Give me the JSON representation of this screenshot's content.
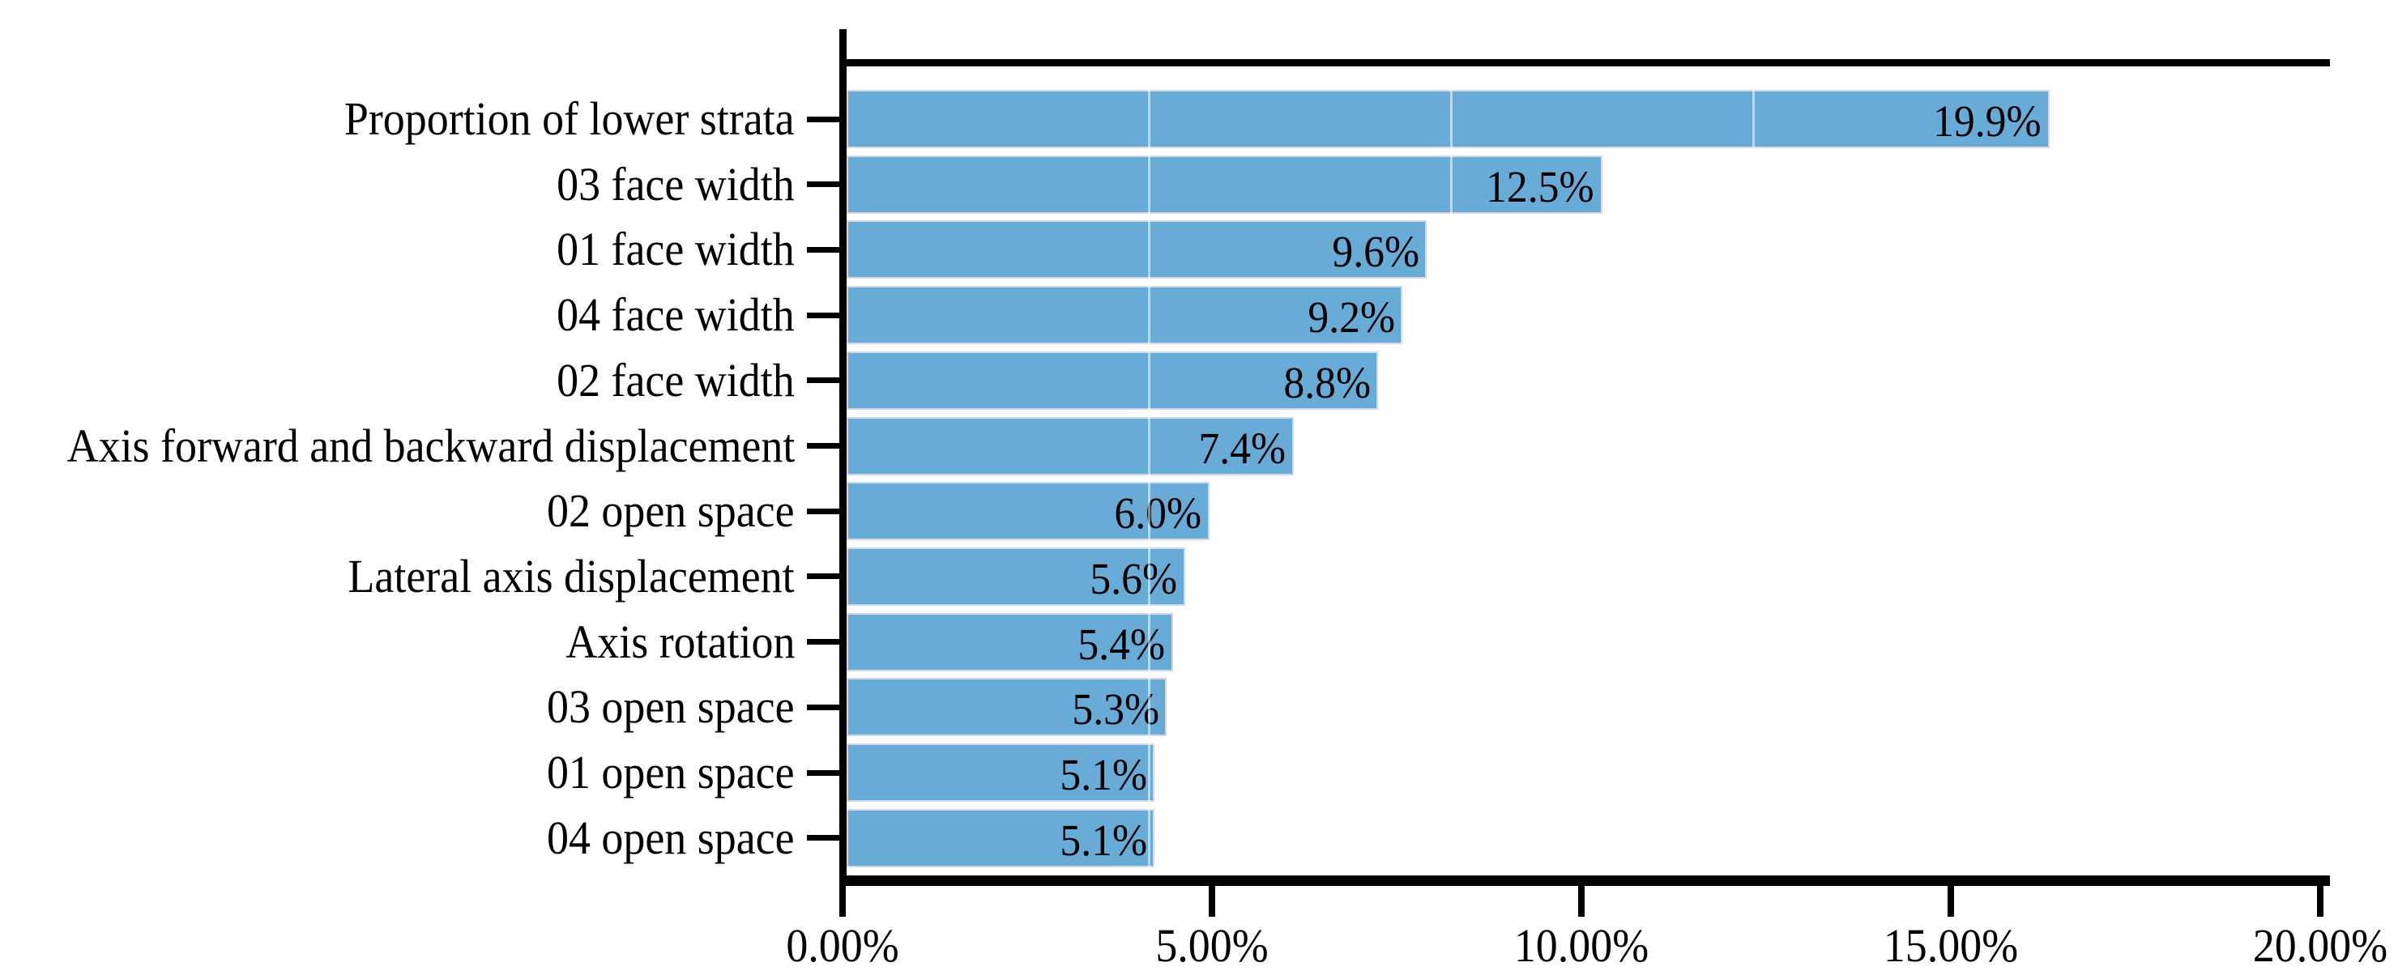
{
  "chart_data": {
    "type": "bar",
    "orientation": "horizontal",
    "categories": [
      "Proportion of lower strata",
      "03 face width",
      "01 face width",
      "04 face width",
      "02 face width",
      "Axis forward and backward displacement",
      "02 open space",
      "Lateral axis displacement",
      "Axis rotation",
      "03 open space",
      "01 open space",
      "04 open space"
    ],
    "values": [
      19.9,
      12.5,
      9.6,
      9.2,
      8.8,
      7.4,
      6.0,
      5.6,
      5.4,
      5.3,
      5.1,
      5.1
    ],
    "value_labels": [
      "19.9%",
      "12.5%",
      "9.6%",
      "9.2%",
      "8.8%",
      "7.4%",
      "6.0%",
      "5.6%",
      "5.4%",
      "5.3%",
      "5.1%",
      "5.1%"
    ],
    "x_axis": {
      "range": [
        0,
        20
      ],
      "tick_values": [
        0,
        5,
        10,
        15,
        20
      ],
      "tick_labels": [
        "0.00%",
        "5.00%",
        "10.00%",
        "15.00%",
        "20.00%"
      ]
    },
    "legend": "none",
    "grid": "faint white vertical gridlines visible inside bars",
    "internal_gridlines": [
      5,
      10,
      15,
      20
    ],
    "bar_render_scale": 0.818,
    "bar_color": "#69abd7",
    "bar_border_color": "#d3d8e9",
    "axis_color": "#000000",
    "text_color": "#000000",
    "background_color": "#ffffff"
  }
}
